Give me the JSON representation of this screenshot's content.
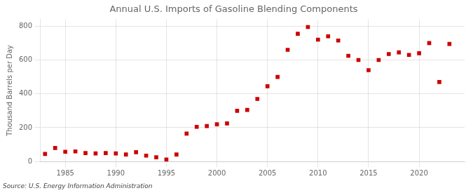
{
  "chart_data": {
    "type": "scatter",
    "title": "Annual U.S. Imports of Gasoline Blending Components",
    "ylabel": "Thousand Barrels per Day",
    "annotation": "Source: U.S. Energy Information Administration",
    "x": [
      1983,
      1984,
      1985,
      1986,
      1987,
      1988,
      1989,
      1990,
      1991,
      1992,
      1993,
      1994,
      1995,
      1996,
      1997,
      1998,
      1999,
      2000,
      2001,
      2002,
      2003,
      2004,
      2005,
      2006,
      2007,
      2008,
      2009,
      2010,
      2011,
      2012,
      2013,
      2014,
      2015,
      2016,
      2017,
      2018,
      2019,
      2020,
      2021,
      2022,
      2023
    ],
    "values": [
      45,
      80,
      58,
      60,
      50,
      48,
      50,
      48,
      42,
      55,
      35,
      25,
      12,
      42,
      165,
      205,
      210,
      220,
      225,
      300,
      305,
      370,
      445,
      500,
      660,
      755,
      795,
      720,
      740,
      715,
      625,
      600,
      540,
      600,
      635,
      645,
      630,
      640,
      700,
      470,
      695
    ],
    "color": "#cc0000",
    "marker": "square",
    "xlim": [
      1982.5,
      2024.5
    ],
    "xticks": [
      1985,
      1990,
      1995,
      2000,
      2005,
      2010,
      2015,
      2020
    ],
    "ylim": [
      0,
      840
    ],
    "yticks": [
      0,
      200,
      400,
      600,
      800
    ],
    "grid": true
  }
}
